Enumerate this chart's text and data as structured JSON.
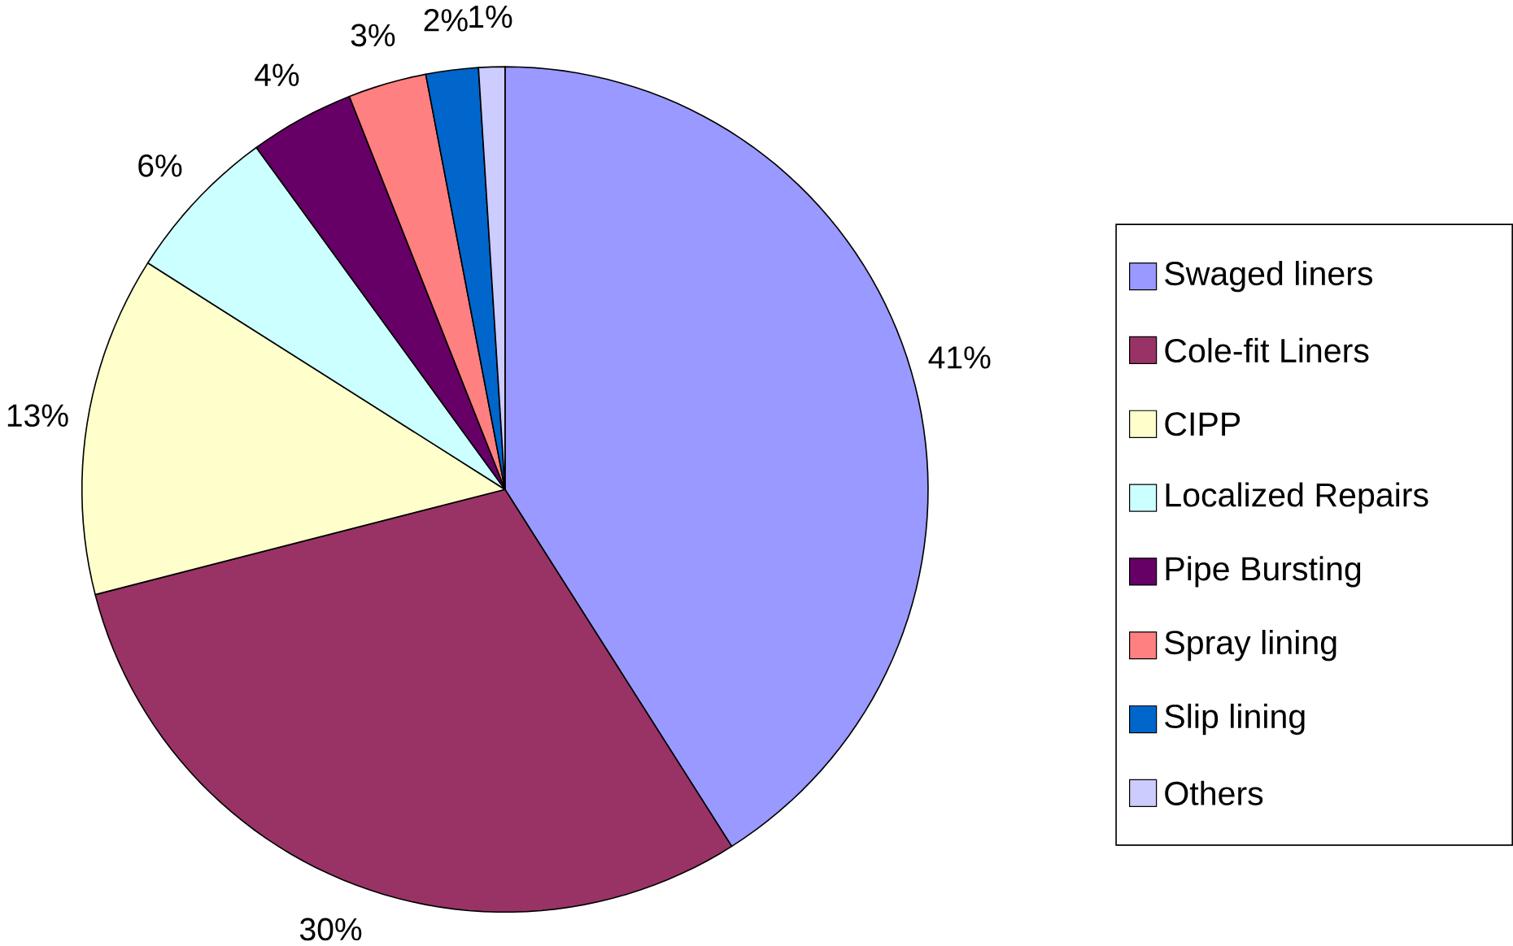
{
  "chart_data": {
    "type": "pie",
    "categories": [
      "Swaged liners",
      "Cole-fit Liners",
      "CIPP",
      "Localized Repairs",
      "Pipe Bursting",
      "Spray lining",
      "Slip lining",
      "Others"
    ],
    "values": [
      41,
      30,
      13,
      6,
      4,
      3,
      2,
      1
    ],
    "value_labels": [
      "41%",
      "30%",
      "13%",
      "6%",
      "4%",
      "3%",
      "2%",
      "1%"
    ],
    "colors": [
      "#9999ff",
      "#993366",
      "#ffffcc",
      "#ccffff",
      "#660066",
      "#ff8080",
      "#0066cc",
      "#ccccff"
    ],
    "legend": "right"
  }
}
